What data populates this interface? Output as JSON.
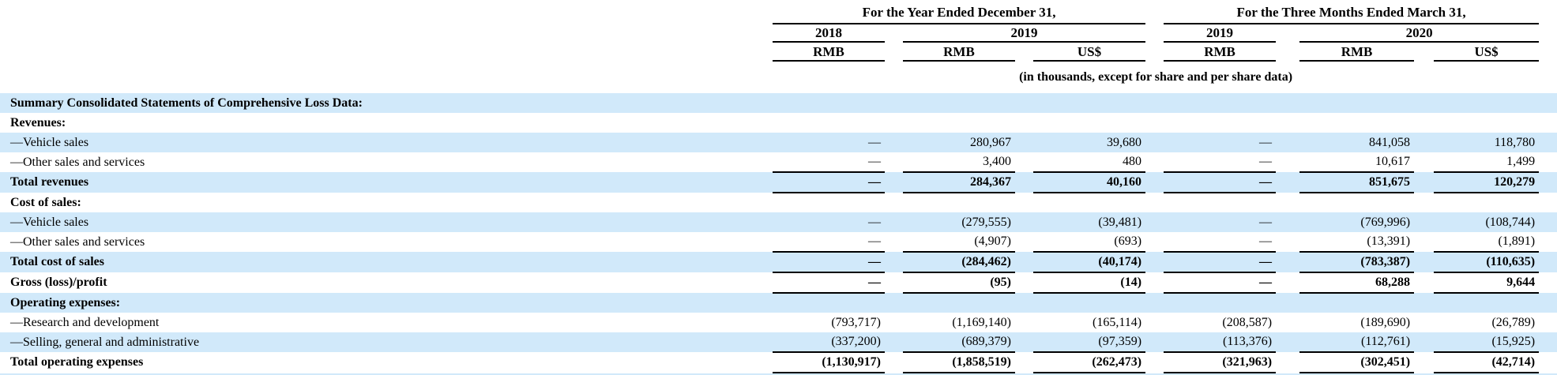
{
  "table": {
    "header": {
      "group_left": "For the Year Ended December 31,",
      "group_right": "For the Three Months Ended March 31,",
      "years": {
        "y2018": "2018",
        "y2019_annual": "2019",
        "y2019_q1": "2019",
        "y2020_q1": "2020"
      },
      "units": {
        "c1": "RMB",
        "c2": "RMB",
        "c3": "US$",
        "c4": "RMB",
        "c5": "RMB",
        "c6": "US$"
      },
      "note": "(in thousands, except for share and per share data)"
    },
    "colors": {
      "row_highlight": "#d1e9fa",
      "rule": "#000000",
      "text": "#000000"
    },
    "rows": [
      {
        "label": "Summary Consolidated Statements of Comprehensive Loss Data:",
        "style": "section",
        "shaded": true,
        "underline": false,
        "values": [
          "",
          "",
          "",
          "",
          "",
          ""
        ]
      },
      {
        "label": "Revenues:",
        "style": "section",
        "shaded": false,
        "underline": false,
        "values": [
          "",
          "",
          "",
          "",
          "",
          ""
        ]
      },
      {
        "label": "—Vehicle sales",
        "style": "item",
        "shaded": true,
        "underline": false,
        "values": [
          "—",
          "280,967",
          "39,680",
          "—",
          "841,058",
          "118,780"
        ]
      },
      {
        "label": "—Other sales and services",
        "style": "item",
        "shaded": false,
        "underline": true,
        "values": [
          "—",
          "3,400",
          "480",
          "—",
          "10,617",
          "1,499"
        ]
      },
      {
        "label": "Total revenues",
        "style": "total",
        "shaded": true,
        "underline": true,
        "values": [
          "—",
          "284,367",
          "40,160",
          "—",
          "851,675",
          "120,279"
        ]
      },
      {
        "label": "Cost of sales:",
        "style": "section",
        "shaded": false,
        "underline": false,
        "values": [
          "",
          "",
          "",
          "",
          "",
          ""
        ]
      },
      {
        "label": "—Vehicle sales",
        "style": "item",
        "shaded": true,
        "underline": false,
        "values": [
          "—",
          "(279,555)",
          "(39,481)",
          "—",
          "(769,996)",
          "(108,744)"
        ]
      },
      {
        "label": "—Other sales and services",
        "style": "item",
        "shaded": false,
        "underline": true,
        "values": [
          "—",
          "(4,907)",
          "(693)",
          "—",
          "(13,391)",
          "(1,891)"
        ]
      },
      {
        "label": "Total cost of sales",
        "style": "total",
        "shaded": true,
        "underline": true,
        "values": [
          "—",
          "(284,462)",
          "(40,174)",
          "—",
          "(783,387)",
          "(110,635)"
        ]
      },
      {
        "label": "Gross (loss)/profit",
        "style": "total",
        "shaded": false,
        "underline": true,
        "values": [
          "—",
          "(95)",
          "(14)",
          "—",
          "68,288",
          "9,644"
        ]
      },
      {
        "label": "Operating expenses:",
        "style": "section",
        "shaded": true,
        "underline": false,
        "values": [
          "",
          "",
          "",
          "",
          "",
          ""
        ]
      },
      {
        "label": "—Research and development",
        "style": "item",
        "shaded": false,
        "underline": false,
        "values": [
          "(793,717)",
          "(1,169,140)",
          "(165,114)",
          "(208,587)",
          "(189,690)",
          "(26,789)"
        ]
      },
      {
        "label": "—Selling, general and administrative",
        "style": "item",
        "shaded": true,
        "underline": true,
        "values": [
          "(337,200)",
          "(689,379)",
          "(97,359)",
          "(113,376)",
          "(112,761)",
          "(15,925)"
        ]
      },
      {
        "label": "Total operating expenses",
        "style": "total",
        "shaded": false,
        "underline": true,
        "values": [
          "(1,130,917)",
          "(1,858,519)",
          "(262,473)",
          "(321,963)",
          "(302,451)",
          "(42,714)"
        ]
      }
    ]
  }
}
